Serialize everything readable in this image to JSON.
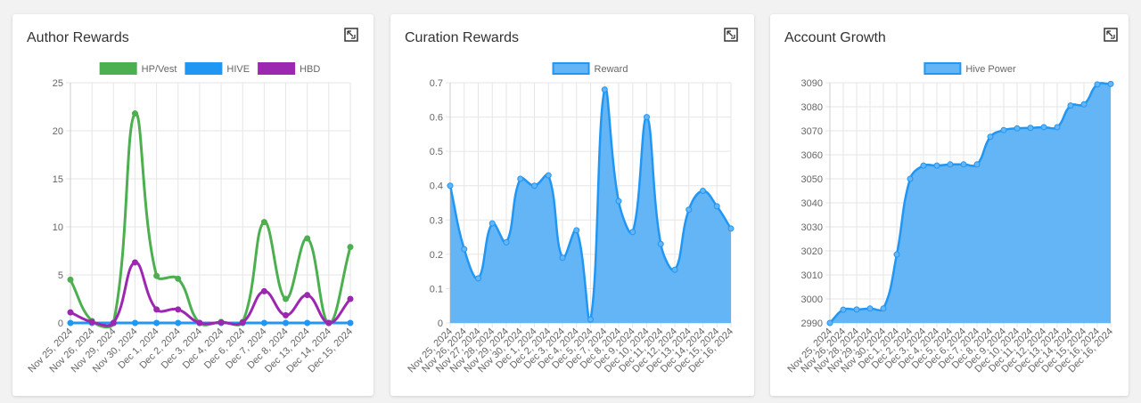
{
  "chart_data": [
    {
      "type": "line",
      "title": "Author Rewards",
      "legend": "top",
      "grid": true,
      "categories": [
        "Nov 25, 2024",
        "Nov 26, 2024",
        "Nov 29, 2024",
        "Nov 30, 2024",
        "Dec 1, 2024",
        "Dec 2, 2024",
        "Dec 3, 2024",
        "Dec 4, 2024",
        "Dec 6, 2024",
        "Dec 7, 2024",
        "Dec 8, 2024",
        "Dec 13, 2024",
        "Dec 14, 2024",
        "Dec 15, 2024"
      ],
      "series": [
        {
          "name": "HP/Vest",
          "color": "#4caf50",
          "values": [
            4.5,
            0.2,
            0,
            21.8,
            4.9,
            4.6,
            0,
            0.1,
            0.1,
            10.5,
            2.5,
            8.8,
            0,
            7.9
          ]
        },
        {
          "name": "HIVE",
          "color": "#2196f3",
          "values": [
            0,
            0,
            0,
            0,
            0,
            0,
            0,
            0,
            0,
            0,
            0,
            0,
            0,
            0
          ]
        },
        {
          "name": "HBD",
          "color": "#9c27b0",
          "values": [
            1.1,
            0.1,
            0,
            6.3,
            1.4,
            1.4,
            0,
            0.05,
            0.05,
            3.3,
            0.8,
            2.9,
            0,
            2.5
          ]
        }
      ],
      "ylim": [
        0,
        25
      ],
      "yticks": [
        0,
        5,
        10,
        15,
        20,
        25
      ]
    },
    {
      "type": "area",
      "title": "Curation Rewards",
      "legend": "top",
      "grid": true,
      "categories": [
        "Nov 25, 2024",
        "Nov 26, 2024",
        "Nov 27, 2024",
        "Nov 28, 2024",
        "Nov 29, 2024",
        "Nov 30, 2024",
        "Dec 1, 2024",
        "Dec 2, 2024",
        "Dec 3, 2024",
        "Dec 4, 2024",
        "Dec 5, 2024",
        "Dec 7, 2024",
        "Dec 8, 2024",
        "Dec 9, 2024",
        "Dec 10, 2024",
        "Dec 11, 2024",
        "Dec 12, 2024",
        "Dec 13, 2024",
        "Dec 14, 2024",
        "Dec 15, 2024",
        "Dec 16, 2024"
      ],
      "series": [
        {
          "name": "Reward",
          "color": "#2196f3",
          "values": [
            0.4,
            0.215,
            0.13,
            0.29,
            0.235,
            0.42,
            0.4,
            0.43,
            0.19,
            0.27,
            0.01,
            0.68,
            0.355,
            0.265,
            0.6,
            0.23,
            0.155,
            0.33,
            0.385,
            0.34,
            0.275
          ]
        }
      ],
      "ylim": [
        0,
        0.7
      ],
      "yticks": [
        0,
        0.1,
        0.2,
        0.3,
        0.4,
        0.5,
        0.6,
        0.7
      ]
    },
    {
      "type": "area",
      "title": "Account Growth",
      "legend": "top",
      "grid": true,
      "categories": [
        "Nov 25, 2024",
        "Nov 26, 2024",
        "Nov 28, 2024",
        "Nov 29, 2024",
        "Nov 30, 2024",
        "Dec 1, 2024",
        "Dec 2, 2024",
        "Dec 3, 2024",
        "Dec 4, 2024",
        "Dec 5, 2024",
        "Dec 6, 2024",
        "Dec 7, 2024",
        "Dec 8, 2024",
        "Dec 9, 2024",
        "Dec 10, 2024",
        "Dec 11, 2024",
        "Dec 12, 2024",
        "Dec 13, 2024",
        "Dec 14, 2024",
        "Dec 15, 2024",
        "Dec 16, 2024",
        "Dec 16, 2024"
      ],
      "series": [
        {
          "name": "Hive Power",
          "color": "#2196f3",
          "values": [
            2990,
            2995.5,
            2995.6,
            2996,
            2996,
            3018.5,
            3050,
            3055.5,
            3055.5,
            3056,
            3056,
            3056,
            3067.5,
            3070.3,
            3071,
            3071.2,
            3071.5,
            3071.5,
            3080.5,
            3081,
            3089.3,
            3089.5
          ]
        }
      ],
      "ylim": [
        2990,
        3090
      ],
      "yticks": [
        2990,
        3000,
        3010,
        3020,
        3030,
        3040,
        3050,
        3060,
        3070,
        3080,
        3090
      ]
    }
  ]
}
